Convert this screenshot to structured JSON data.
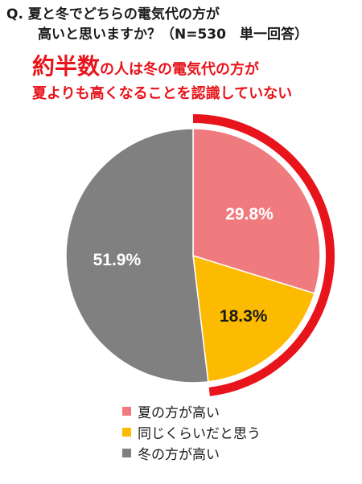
{
  "question": {
    "line1": "Q. 夏と冬でどちらの電気代の方が",
    "line2": "高いと思いますか？（N=530　単一回答）"
  },
  "headline": {
    "emphasis": "約半数",
    "line1_rest": "の人は冬の電気代の方が",
    "line2": "夏よりも高くなることを認識していない"
  },
  "colors": {
    "highlight_arc": "#e8141b",
    "headline": "#e8141b"
  },
  "chart_data": {
    "type": "pie",
    "unit": "%",
    "slices": [
      {
        "label": "夏の方が高い",
        "value": 29.8,
        "display": "29.8%",
        "color": "#f07b7f"
      },
      {
        "label": "同じくらいだと思う",
        "value": 18.3,
        "display": "18.3%",
        "color": "#fcbb00"
      },
      {
        "label": "冬の方が高い",
        "value": 51.9,
        "display": "51.9%",
        "color": "#808080"
      }
    ],
    "start_angle_deg": 0,
    "direction": "clockwise",
    "highlighted_slices": [
      "夏の方が高い",
      "同じくらいだと思う"
    ],
    "legend_position": "bottom"
  }
}
